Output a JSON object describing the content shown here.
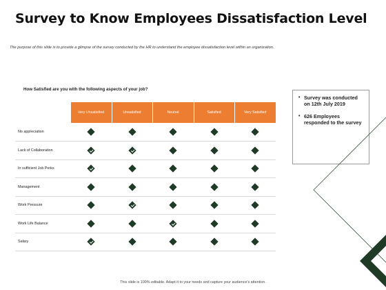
{
  "slide": {
    "title": "Survey to Know Employees Dissatisfaction Level",
    "purpose": "The purpose of this slide is to provide a glimpse of the survey conducted by the HR to understand the employee dissatisfaction level within an organization.",
    "question": "How Satisfied are you with the following aspects of your job?",
    "footer": "This slide is 100% editable. Adapt it to your needs and capture your audience's attention."
  },
  "table": {
    "columns": [
      "Very Unsatisfied",
      "Unsatisfied",
      "Neutral",
      "Satisfied",
      "Very Satisfied"
    ],
    "rows": [
      {
        "label": "No appreciation",
        "checked": [
          false,
          false,
          false,
          false,
          false
        ]
      },
      {
        "label": "Lack of Collaboration",
        "checked": [
          true,
          true,
          false,
          false,
          false
        ]
      },
      {
        "label": "In sufficient Job Perks",
        "checked": [
          true,
          false,
          false,
          false,
          false
        ]
      },
      {
        "label": "Management",
        "checked": [
          false,
          false,
          false,
          false,
          false
        ]
      },
      {
        "label": "Work Pressure",
        "checked": [
          false,
          true,
          false,
          false,
          false
        ]
      },
      {
        "label": "Work Life Balance",
        "checked": [
          false,
          false,
          true,
          false,
          false
        ]
      },
      {
        "label": "Salary",
        "checked": [
          true,
          false,
          false,
          false,
          false
        ]
      }
    ]
  },
  "info": {
    "items": [
      "Survey was conducted on 12th July 2019",
      "626 Employees responded to the survey"
    ]
  },
  "colors": {
    "header": "#ec7d31",
    "mark": "#1f3a26",
    "decoration": "#1f3a26"
  }
}
